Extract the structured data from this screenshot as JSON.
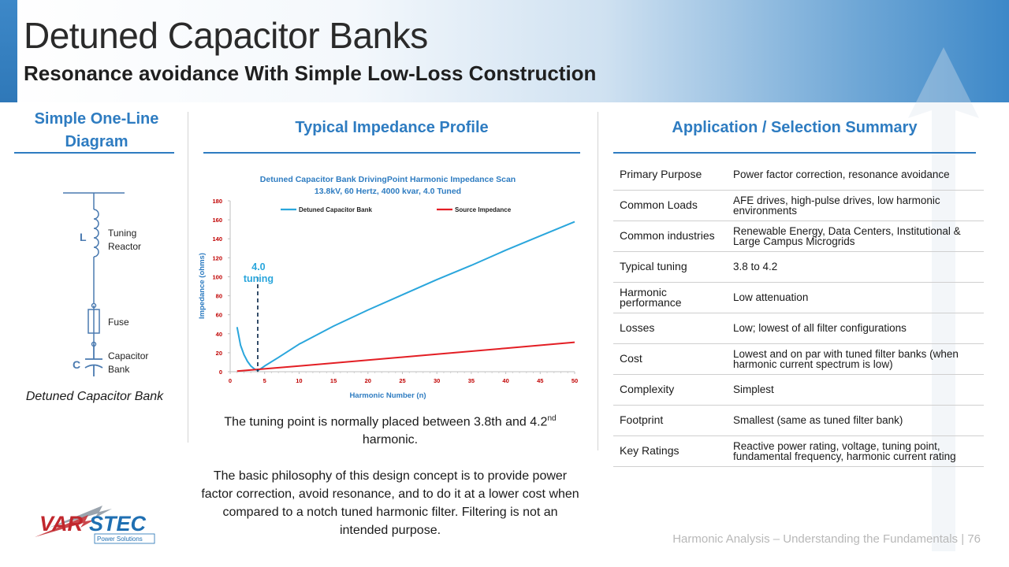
{
  "header": {
    "title": "Detuned Capacitor Banks",
    "subtitle": "Resonance avoidance With Simple Low-Loss Construction"
  },
  "sections": {
    "one_line": "Simple One-Line Diagram",
    "impedance": "Typical Impedance Profile",
    "summary": "Application / Selection Summary"
  },
  "diagram": {
    "inductor_letter": "L",
    "inductor_label": "Tuning Reactor",
    "fuse_label": "Fuse",
    "capacitor_letter": "C",
    "capacitor_label": "Capacitor Bank",
    "caption": "Detuned Capacitor Bank"
  },
  "chart_data": {
    "type": "line",
    "title": "Detuned Capacitor Bank DrivingPoint Harmonic Impedance Scan",
    "subtitle": "13.8kV, 60 Hertz, 4000 kvar, 4.0 Tuned",
    "xlabel": "Harmonic Number (n)",
    "ylabel": "Impedance (ohms)",
    "xlim": [
      0,
      50
    ],
    "ylim": [
      0,
      180
    ],
    "xticks": [
      0,
      5,
      10,
      15,
      20,
      25,
      30,
      35,
      40,
      45,
      50
    ],
    "yticks": [
      0,
      20,
      40,
      60,
      80,
      100,
      120,
      140,
      160,
      180
    ],
    "legend_position": "top",
    "annotation": {
      "text": "4.0 tuning",
      "x": 4
    },
    "series": [
      {
        "name": "Detuned Capacitor Bank",
        "color": "#2aa6dc",
        "x": [
          1,
          1.5,
          2,
          2.5,
          3,
          3.5,
          4,
          5,
          7,
          10,
          15,
          20,
          25,
          30,
          35,
          40,
          45,
          50
        ],
        "y": [
          47,
          28,
          18,
          11,
          6,
          3,
          1,
          6,
          15,
          29,
          48,
          65,
          81,
          97,
          112,
          128,
          143,
          158
        ]
      },
      {
        "name": "Source Impedance",
        "color": "#e31e24",
        "x": [
          1,
          10,
          20,
          30,
          40,
          50
        ],
        "y": [
          0.6,
          6,
          12.2,
          18.5,
          24.7,
          31
        ]
      }
    ]
  },
  "chart_text": {
    "p1_a": "The tuning point is normally placed between 3.8th and 4.2",
    "p1_sup": "nd",
    "p1_b": " harmonic.",
    "p2": "The basic philosophy of this design concept is to provide power factor correction, avoid resonance, and to do it at a lower cost when compared to a notch tuned harmonic filter. Filtering is not an intended purpose."
  },
  "summary_table": [
    {
      "key": "Primary Purpose",
      "value": "Power factor correction, resonance avoidance"
    },
    {
      "key": "Common Loads",
      "value": "AFE drives, high-pulse drives, low harmonic environments"
    },
    {
      "key": "Common industries",
      "value": "Renewable Energy, Data Centers, Institutional & Large Campus Microgrids"
    },
    {
      "key": "Typical tuning",
      "value": "3.8 to 4.2"
    },
    {
      "key": "Harmonic performance",
      "value": "Low attenuation"
    },
    {
      "key": "Losses",
      "value": "Low; lowest of all filter configurations"
    },
    {
      "key": "Cost",
      "value": "Lowest and on par with tuned filter banks (when harmonic current spectrum is low)"
    },
    {
      "key": "Complexity",
      "value": "Simplest"
    },
    {
      "key": "Footprint",
      "value": "Smallest (same as tuned filter bank)"
    },
    {
      "key": "Key Ratings",
      "value": "Reactive power rating, voltage, tuning point, fundamental frequency, harmonic current rating"
    }
  ],
  "logo": {
    "brand": "VARSTEC",
    "tagline": "Power Solutions"
  },
  "footer": {
    "text": "Harmonic Analysis – Understanding the Fundamentals",
    "separator": "|",
    "page": "76"
  }
}
